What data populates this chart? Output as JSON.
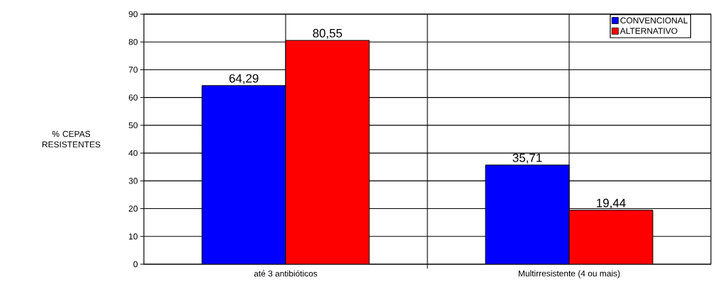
{
  "chart_data": {
    "type": "bar",
    "ylabel": "% CEPAS RESISTENTES",
    "categories": [
      "até 3 antibióticos",
      "Multirresistente (4 ou mais)"
    ],
    "series": [
      {
        "name": "CONVENCIONAL",
        "color": "#0000ff",
        "values": [
          64.29,
          35.71
        ],
        "value_labels": [
          "64,29",
          "35,71"
        ]
      },
      {
        "name": "ALTERNATIVO",
        "color": "#ff0000",
        "values": [
          80.55,
          19.44
        ],
        "value_labels": [
          "80,55",
          "19,44"
        ]
      }
    ],
    "ylim": [
      0,
      90
    ],
    "yticks": [
      0,
      10,
      20,
      30,
      40,
      50,
      60,
      70,
      80,
      90
    ],
    "grid": true,
    "legend": "top right"
  }
}
